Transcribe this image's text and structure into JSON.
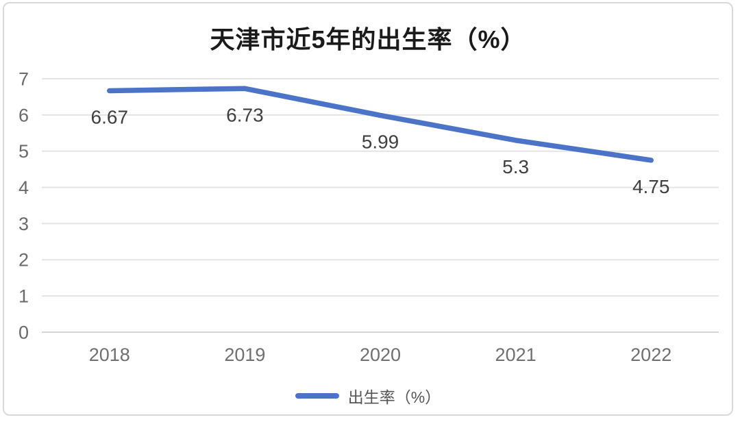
{
  "card": {
    "background": "#ffffff",
    "border_color": "#d9d9d9"
  },
  "colors": {
    "line": "#4b73c8",
    "gridline": "#e4e4e4",
    "axis_line": "#d5d5d5",
    "tick_label": "#6a6a6a",
    "data_label": "#3f3f3f",
    "title_text": "#1a1a1a",
    "legend_text": "#555555"
  },
  "legend": {
    "label": "出生率（%）"
  },
  "chart_data": {
    "type": "line",
    "title": "天津市近5年的出生率（%）",
    "categories": [
      "2018",
      "2019",
      "2020",
      "2021",
      "2022"
    ],
    "series": [
      {
        "name": "出生率（%）",
        "color": "#4b73c8",
        "values": [
          6.67,
          6.73,
          5.99,
          5.3,
          4.75
        ]
      }
    ],
    "data_labels": [
      "6.67",
      "6.73",
      "5.99",
      "5.3",
      "4.75"
    ],
    "xlabel": "",
    "ylabel": "",
    "ylim": [
      0,
      7
    ],
    "yticks": [
      0,
      1,
      2,
      3,
      4,
      5,
      6,
      7
    ],
    "grid": true,
    "legend_position": "bottom"
  }
}
